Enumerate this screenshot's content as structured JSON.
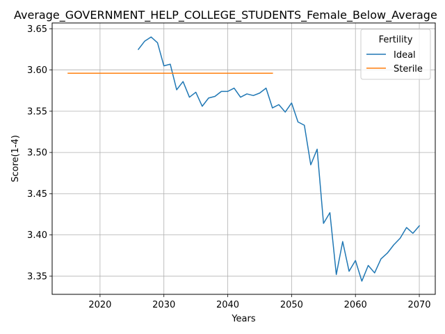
{
  "chart_data": {
    "type": "line",
    "title": "Average_GOVERNMENT_HELP_COLLEGE_STUDENTS_Female_Below_Average",
    "xlabel": "Years",
    "ylabel": "Score(1-4)",
    "xlim": [
      2012.5,
      2072.5
    ],
    "ylim": [
      3.328,
      3.657
    ],
    "xticks": [
      2020,
      2030,
      2040,
      2050,
      2060,
      2070
    ],
    "yticks": [
      3.35,
      3.4,
      3.45,
      3.5,
      3.55,
      3.6,
      3.65
    ],
    "ytick_labels": [
      "3.35",
      "3.40",
      "3.45",
      "3.50",
      "3.55",
      "3.60",
      "3.65"
    ],
    "grid": true,
    "legend": {
      "title": "Fertility",
      "position": "top-right"
    },
    "series": [
      {
        "name": "Ideal",
        "color": "#1f77b4",
        "x": [
          2026,
          2027,
          2028,
          2029,
          2030,
          2031,
          2032,
          2033,
          2034,
          2035,
          2036,
          2037,
          2038,
          2039,
          2040,
          2041,
          2042,
          2043,
          2044,
          2045,
          2046,
          2047,
          2048,
          2049,
          2050,
          2051,
          2052,
          2053,
          2054,
          2055,
          2056,
          2057,
          2058,
          2059,
          2060,
          2061,
          2062,
          2063,
          2064,
          2065,
          2066,
          2067,
          2068,
          2069,
          2070
        ],
        "values": [
          3.625,
          3.635,
          3.64,
          3.633,
          3.605,
          3.607,
          3.576,
          3.586,
          3.567,
          3.573,
          3.556,
          3.566,
          3.568,
          3.574,
          3.574,
          3.578,
          3.567,
          3.571,
          3.569,
          3.572,
          3.578,
          3.554,
          3.558,
          3.549,
          3.56,
          3.537,
          3.533,
          3.485,
          3.504,
          3.414,
          3.427,
          3.352,
          3.392,
          3.356,
          3.369,
          3.344,
          3.363,
          3.354,
          3.371,
          3.378,
          3.388,
          3.396,
          3.409,
          3.402,
          3.411
        ]
      },
      {
        "name": "Sterile",
        "color": "#ff7f0e",
        "x": [
          2015,
          2047
        ],
        "values": [
          3.596,
          3.596
        ]
      }
    ]
  }
}
